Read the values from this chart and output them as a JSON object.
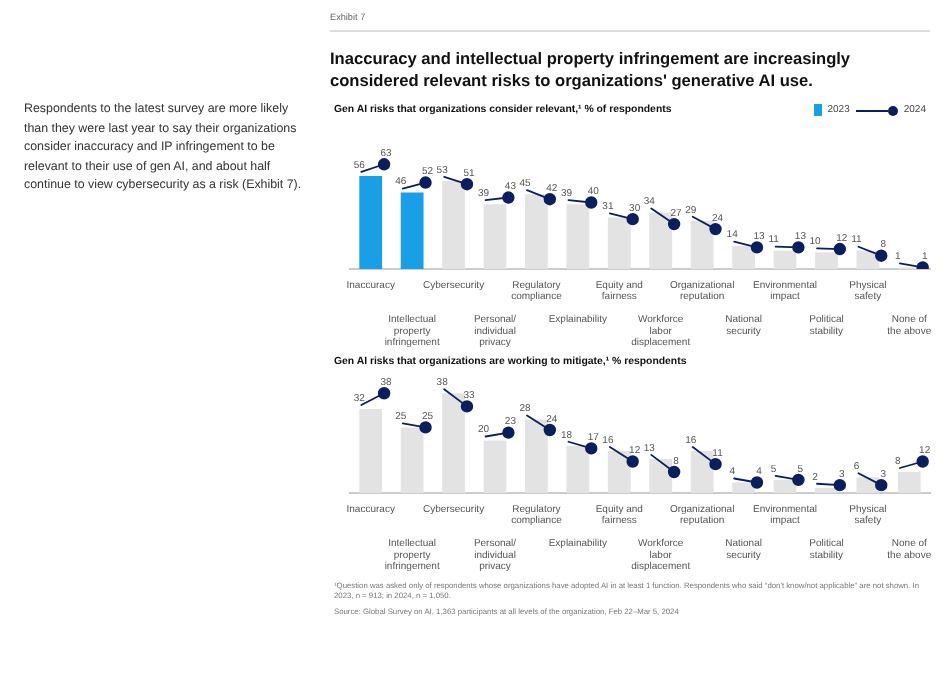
{
  "chart_data": [
    {
      "type": "bar",
      "title": "Inaccuracy and intellectual property infringement are increasingly considered relevant risks to organizations' generative AI use.",
      "subtitle": "Gen AI risks that organizations consider relevant,¹ % of respondents",
      "annotations": [
        "Exhibit 7",
        "Respondents to the latest survey are more likely than they were last year to say their organizations consider inaccuracy and IP infringement to be relevant to their use of gen AI, and about half continue to view cybersecurity as a risk (Exhibit 7)."
      ],
      "categories": [
        "Inaccuracy",
        "Intellectual property infringement",
        "Cybersecurity",
        "Personal/ individual privacy",
        "Regulatory compliance",
        "Explainability",
        "Equity and fairness",
        "Workforce labor displacement",
        "Organizational reputation",
        "National security",
        "Environmental impact",
        "Political stability",
        "Physical safety",
        "None of the above"
      ],
      "series": [
        {
          "name": "2023",
          "colors": [
            "#1a9ee6",
            "#1a9ee6",
            "#e3e3e3",
            "#e3e3e3",
            "#e3e3e3",
            "#e3e3e3",
            "#e3e3e3",
            "#e3e3e3",
            "#e3e3e3",
            "#e3e3e3",
            "#e3e3e3",
            "#e3e3e3",
            "#e3e3e3",
            "#e3e3e3"
          ],
          "values": [
            56,
            46,
            53,
            39,
            45,
            39,
            31,
            34,
            29,
            14,
            11,
            10,
            11,
            1
          ]
        },
        {
          "name": "2024",
          "type": "scatter",
          "color": "#0b1f5c",
          "x": [
            "Inaccuracy",
            "Intellectual property infringement",
            "Cybersecurity",
            "Personal/ individual privacy",
            "Regulatory compliance",
            "Explainability",
            "Equity and fairness",
            "Workforce labor displacement",
            "Organizational reputation",
            "National security",
            "Environmental impact",
            "Political stability",
            "Physical safety",
            "None of the above"
          ],
          "values": [
            63,
            52,
            51,
            43,
            42,
            40,
            30,
            27,
            24,
            13,
            13,
            12,
            8,
            1
          ]
        }
      ],
      "tick_labels": "x",
      "grid": false,
      "legend": "top right",
      "marker": "circle",
      "data_labels": true
    },
    {
      "type": "bar",
      "title": "Gen AI risks that organizations are working to mitigate,¹ % respondents",
      "annotations": [
        "¹Question was asked only of respondents whose organizations have adopted AI in at least 1 function. Respondents who said “don't know/not applicable” are not shown. In 2023, n = 913; in 2024, n = 1,050.",
        "Source: Global Survey on AI, 1,363 participants at all levels of the organization, Feb 22–Mar 5, 2024"
      ],
      "categories": [
        "Inaccuracy",
        "Intellectual property infringement",
        "Cybersecurity",
        "Personal/ individual privacy",
        "Regulatory compliance",
        "Explainability",
        "Equity and fairness",
        "Workforce labor displacement",
        "Organizational reputation",
        "National security",
        "Environmental impact",
        "Political stability",
        "Physical safety",
        "None of the above"
      ],
      "series": [
        {
          "colors": [
            "#e3e3e3",
            "#e3e3e3",
            "#e3e3e3",
            "#e3e3e3",
            "#e3e3e3",
            "#e3e3e3",
            "#e3e3e3",
            "#e3e3e3",
            "#e3e3e3",
            "#e3e3e3",
            "#e3e3e3",
            "#e3e3e3",
            "#e3e3e3",
            "#e3e3e3"
          ],
          "values": [
            32,
            25,
            38,
            20,
            28,
            18,
            16,
            13,
            16,
            4,
            5,
            2,
            6,
            8
          ]
        },
        {
          "type": "scatter",
          "color": "#0b1f5c",
          "x": [
            "Inaccuracy",
            "Intellectual property infringement",
            "Cybersecurity",
            "Personal/ individual privacy",
            "Regulatory compliance",
            "Explainability",
            "Equity and fairness",
            "Workforce labor displacement",
            "Organizational reputation",
            "National security",
            "Environmental impact",
            "Political stability",
            "Physical safety",
            "None of the above"
          ],
          "values": [
            38,
            25,
            33,
            23,
            24,
            17,
            12,
            8,
            11,
            4,
            5,
            3,
            3,
            12
          ]
        }
      ],
      "tick_labels": "x",
      "grid": false,
      "marker": "circle",
      "data_labels": true
    }
  ]
}
